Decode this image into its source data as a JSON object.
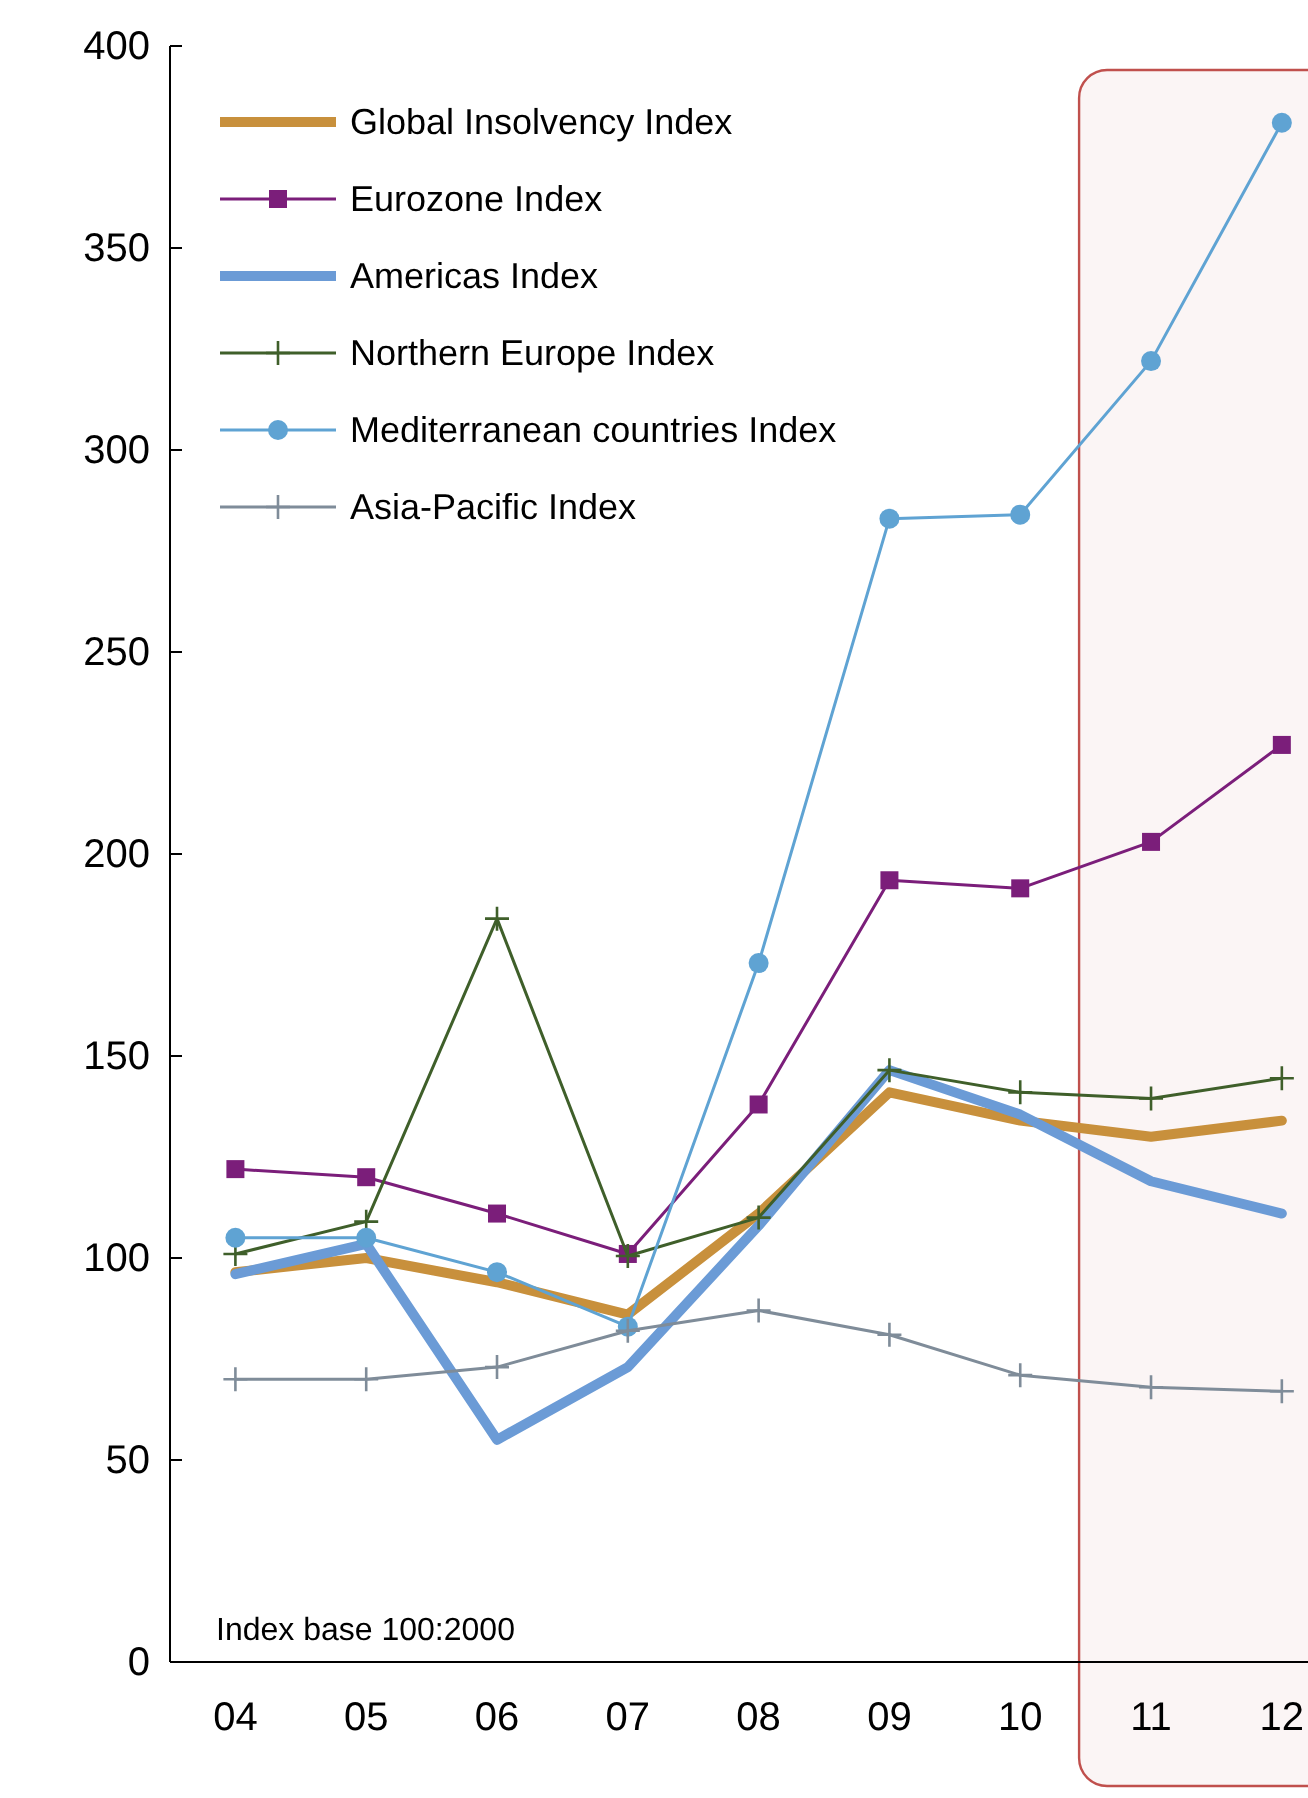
{
  "chart_data": {
    "type": "line",
    "x": [
      4,
      5,
      6,
      7,
      8,
      9,
      10,
      11,
      12
    ],
    "xlim": [
      3.5,
      12.2
    ],
    "xticks": [
      {
        "value": 4,
        "label": "04"
      },
      {
        "value": 5,
        "label": "05"
      },
      {
        "value": 6,
        "label": "06"
      },
      {
        "value": 7,
        "label": "07"
      },
      {
        "value": 8,
        "label": "08"
      },
      {
        "value": 9,
        "label": "09"
      },
      {
        "value": 10,
        "label": "10"
      },
      {
        "value": 11,
        "label": "11"
      },
      {
        "value": 12,
        "label": "12"
      }
    ],
    "ylim": [
      0,
      400
    ],
    "yticks": [
      0,
      50,
      100,
      150,
      200,
      250,
      300,
      350,
      400
    ],
    "legend": "top left",
    "grid": false,
    "series": [
      {
        "name": "Global Insolvency Index",
        "color": "#c8903c",
        "marker": "none",
        "values": [
          96.5,
          100,
          94,
          86,
          111,
          141,
          134,
          130,
          134
        ]
      },
      {
        "name": "Eurozone Index",
        "color": "#7b1e7a",
        "marker": "square",
        "values": [
          122,
          120,
          111,
          101,
          138,
          193.5,
          191.5,
          203,
          227
        ]
      },
      {
        "name": "Americas Index",
        "color": "#6b9bd6",
        "marker": "none",
        "values": [
          96,
          103.5,
          55,
          73,
          108,
          146.5,
          135.5,
          119,
          111
        ]
      },
      {
        "name": "Northern Europe Index",
        "color": "#3f5f2a",
        "marker": "cross",
        "values": [
          101,
          109,
          184,
          100.5,
          110,
          146.5,
          141,
          139.5,
          144.5
        ]
      },
      {
        "name": "Mediterranean countries Index",
        "color": "#5fa3d3",
        "marker": "circle",
        "values": [
          105,
          105,
          96.5,
          83,
          173,
          283,
          284,
          322,
          381
        ]
      },
      {
        "name": "Asia-Pacific Index",
        "color": "#7f8c99",
        "marker": "cross",
        "values": [
          70,
          70,
          73,
          82,
          87,
          81,
          71,
          68,
          67
        ]
      }
    ],
    "bands": [
      {
        "axis": "x",
        "from": 10.45,
        "to": 12.2,
        "color": "#c0504d"
      }
    ],
    "annotations": [
      "Index base 100:2000"
    ]
  }
}
